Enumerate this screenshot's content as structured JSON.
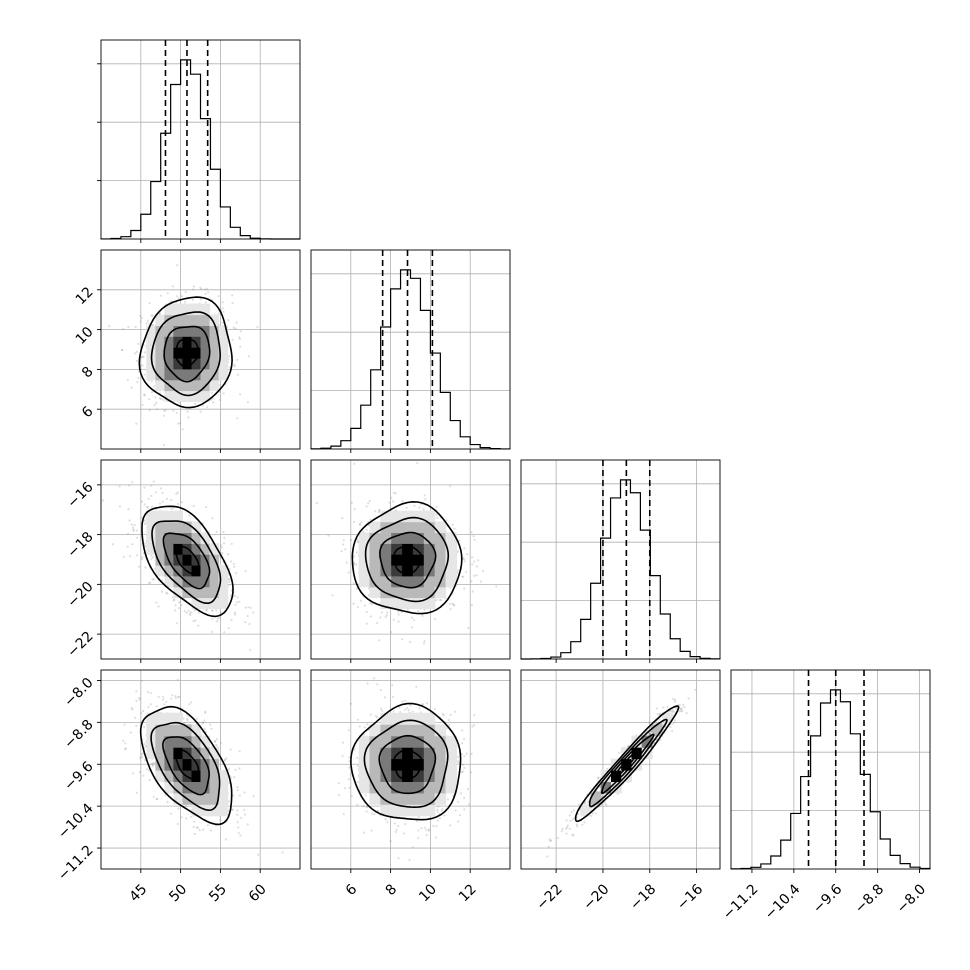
{
  "chart_data": {
    "type": "corner",
    "parameters": [
      {
        "xlim": [
          40,
          65
        ],
        "ylim": [
          4,
          14
        ],
        "xticks": [
          45,
          50,
          55,
          60
        ],
        "xtick_labels": [
          "45",
          "50",
          "55",
          "60"
        ],
        "yticks": [
          6,
          8,
          10,
          12
        ],
        "ytick_labels": [
          "6",
          "8",
          "10",
          "12"
        ],
        "mean": 50.8,
        "sd": 2.6,
        "quantiles": [
          48.1,
          50.8,
          53.4
        ]
      },
      {
        "xlim": [
          4,
          14
        ],
        "ylim": [
          4,
          14
        ],
        "xticks": [
          6,
          8,
          10,
          12
        ],
        "xtick_labels": [
          "6",
          "8",
          "10",
          "12"
        ],
        "yticks": [
          6,
          8,
          10,
          12
        ],
        "ytick_labels": [
          "6",
          "8",
          "10",
          "12"
        ],
        "mean": 8.85,
        "sd": 1.25,
        "quantiles": [
          7.6,
          8.85,
          10.1
        ]
      },
      {
        "xlim": [
          -23.5,
          -15
        ],
        "ylim": [
          -23,
          -15
        ],
        "xticks": [
          -22,
          -20,
          -18,
          -16
        ],
        "xtick_labels": [
          "−22",
          "−20",
          "−18",
          "−16"
        ],
        "yticks": [
          -22,
          -20,
          -18,
          -16
        ],
        "ytick_labels": [
          "−22",
          "−20",
          "−18",
          "−16"
        ],
        "mean": -19.0,
        "sd": 1.0,
        "quantiles": [
          -20.0,
          -19.0,
          -18.0
        ]
      },
      {
        "xlim": [
          -11.6,
          -7.8
        ],
        "ylim": [
          -11.6,
          -7.8
        ],
        "xticks": [
          -11.2,
          -10.4,
          -9.6,
          -8.8,
          -8.0
        ],
        "xtick_labels": [
          "−11.2",
          "−10.4",
          "−9.6",
          "−8.8",
          "−8.0"
        ],
        "yticks": [
          -11.2,
          -10.4,
          -9.6,
          -8.8,
          -8.0
        ],
        "ytick_labels": [
          "−11.2",
          "−10.4",
          "−9.6",
          "−8.8",
          "−8.0"
        ],
        "mean": -9.6,
        "sd": 0.5,
        "quantiles": [
          -10.12,
          -9.6,
          -9.06
        ]
      }
    ],
    "correlations": [
      {
        "i": 1,
        "j": 0,
        "rho": 0.05
      },
      {
        "i": 2,
        "j": 0,
        "rho": -0.55
      },
      {
        "i": 2,
        "j": 1,
        "rho": 0.0
      },
      {
        "i": 3,
        "j": 0,
        "rho": -0.55
      },
      {
        "i": 3,
        "j": 1,
        "rho": 0.0
      },
      {
        "i": 3,
        "j": 2,
        "rho": 0.97
      }
    ],
    "histogram_bins": 20,
    "quantile_levels": [
      0.16,
      0.5,
      0.84
    ],
    "contour_levels_sigma": [
      0.5,
      1.0,
      1.5,
      2.0
    ],
    "grid": true
  }
}
